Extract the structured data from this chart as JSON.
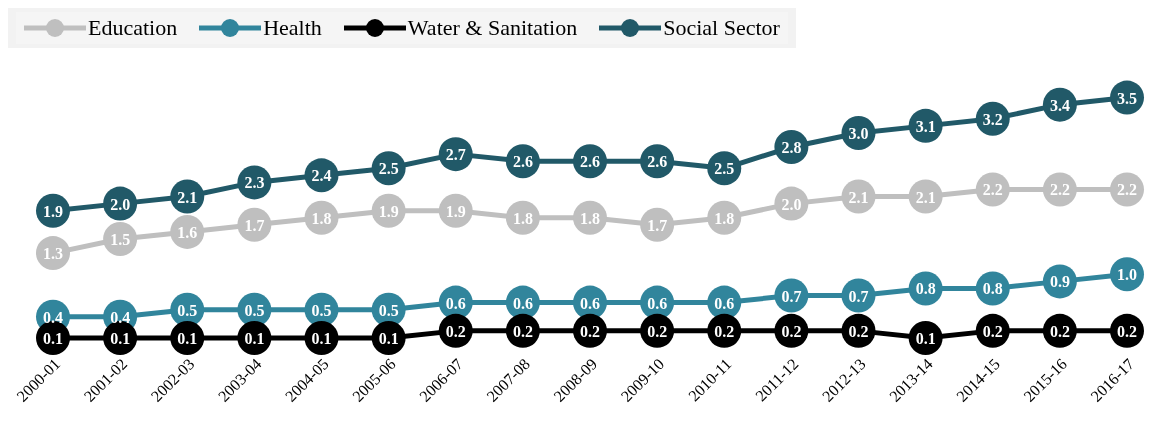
{
  "chart_data": {
    "type": "line",
    "categories": [
      "2000-01",
      "2001-02",
      "2002-03",
      "2003-04",
      "2004-05",
      "2005-06",
      "2006-07",
      "2007-08",
      "2008-09",
      "2009-10",
      "2010-11",
      "2011-12",
      "2012-13",
      "2013-14",
      "2014-15",
      "2015-16",
      "2016-17"
    ],
    "series": [
      {
        "name": "Education",
        "color": "#bfbfbf",
        "values": [
          1.3,
          1.5,
          1.6,
          1.7,
          1.8,
          1.9,
          1.9,
          1.8,
          1.8,
          1.7,
          1.8,
          2,
          2.1,
          2.1,
          2.2,
          2.2,
          2.2
        ],
        "value_labels": [
          "1.3",
          "1.5",
          "1.6",
          "1.7",
          "1.8",
          "1.9",
          "1.9",
          "1.8",
          "1.8",
          "1.7",
          "1.8",
          "2.0",
          "2.1",
          "2.1",
          "2.2",
          "2.2",
          "2.2"
        ]
      },
      {
        "name": "Health",
        "color": "#31859c",
        "values": [
          0.4,
          0.4,
          0.5,
          0.5,
          0.5,
          0.5,
          0.6,
          0.6,
          0.6,
          0.6,
          0.6,
          0.7,
          0.7,
          0.8,
          0.8,
          0.9,
          1
        ],
        "value_labels": [
          "0.4",
          "0.4",
          "0.5",
          "0.5",
          "0.5",
          "0.5",
          "0.6",
          "0.6",
          "0.6",
          "0.6",
          "0.6",
          "0.7",
          "0.7",
          "0.8",
          "0.8",
          "0.9",
          "1.0"
        ]
      },
      {
        "name": "Water & Sanitation",
        "color": "#000000",
        "values": [
          0.1,
          0.1,
          0.1,
          0.1,
          0.1,
          0.1,
          0.2,
          0.2,
          0.2,
          0.2,
          0.2,
          0.2,
          0.2,
          0.1,
          0.2,
          0.2,
          0.2
        ],
        "value_labels": [
          "0.1",
          "0.1",
          "0.1",
          "0.1",
          "0.1",
          "0.1",
          "0.2",
          "0.2",
          "0.2",
          "0.2",
          "0.2",
          "0.2",
          "0.2",
          "0.1",
          "0.2",
          "0.2",
          "0.2"
        ]
      },
      {
        "name": "Social Sector",
        "color": "#215968",
        "values": [
          1.9,
          2,
          2.1,
          2.3,
          2.4,
          2.5,
          2.7,
          2.6,
          2.6,
          2.6,
          2.5,
          2.8,
          3,
          3.1,
          3.2,
          3.4,
          3.5
        ],
        "value_labels": [
          "1.9",
          "2.0",
          "2.1",
          "2.3",
          "2.4",
          "2.5",
          "2.7",
          "2.6",
          "2.6",
          "2.6",
          "2.5",
          "2.8",
          "3.0",
          "3.1",
          "3.2",
          "3.4",
          "3.5"
        ]
      }
    ],
    "legend": "top left",
    "marker": "circle",
    "line_style": "solid",
    "grid": false
  }
}
